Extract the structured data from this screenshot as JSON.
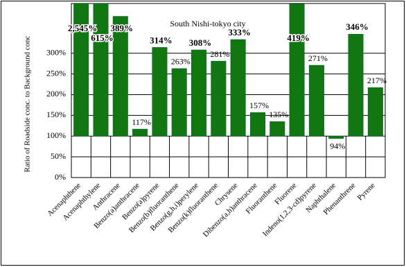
{
  "chart_data": {
    "type": "bar",
    "title": "South Nishi-tokyo city",
    "y_label": "Ratio of Roadside conc. to Background conc",
    "categories": [
      "Acenaphthene",
      "Acenaphthylene",
      "Anthracene",
      "Benzo(a)anthracene",
      "Benzo(a)pyrene",
      "Benzo(b)fluoranthene",
      "Benzo(g,h,i)perylene",
      "Benzo(k)fluoranthene",
      "Chrysene",
      "Dibenzo(a,h)anthracene",
      "Fluoranthene",
      "Fluorene",
      "Indeno(1,2,3-cd)pyrene",
      "Naphthalene",
      "Phenanthrene",
      "Pyrene"
    ],
    "values": [
      2545,
      615,
      389,
      117,
      314,
      263,
      308,
      281,
      333,
      157,
      135,
      419,
      271,
      94,
      346,
      217
    ],
    "value_labels": [
      "2,545%",
      "615%",
      "389%",
      "117%",
      "314%",
      "263%",
      "308%",
      "281%",
      "333%",
      "157%",
      "135%",
      "419%",
      "271%",
      "94%",
      "346%",
      "217%"
    ],
    "color": "#117711",
    "bar_base": 100,
    "ylim": [
      0,
      420
    ],
    "yticks": [
      {
        "value": 0,
        "label": "0%"
      },
      {
        "value": 50,
        "label": "50%"
      },
      {
        "value": 100,
        "label": "100%"
      },
      {
        "value": 150,
        "label": "150%"
      },
      {
        "value": 200,
        "label": "200%"
      },
      {
        "value": 250,
        "label": "250%"
      },
      {
        "value": 300,
        "label": "300%"
      }
    ],
    "grid": true
  }
}
